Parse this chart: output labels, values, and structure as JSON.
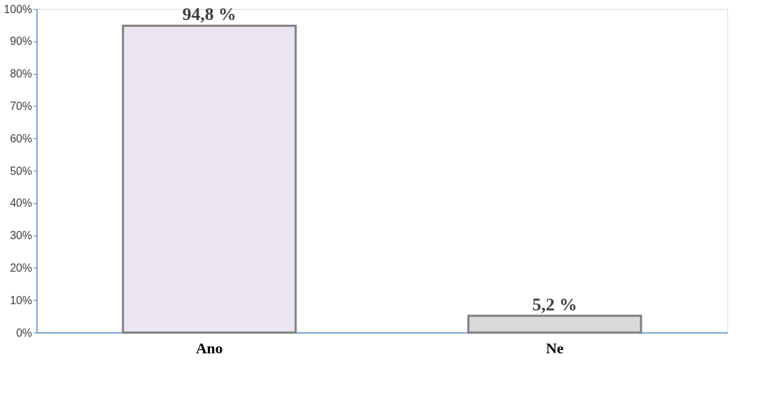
{
  "chart_data": {
    "type": "bar",
    "categories": [
      "Ano",
      "Ne"
    ],
    "values": [
      94.8,
      5.2
    ],
    "colors": [
      "#ece6f3",
      "#d9d9d9"
    ],
    "value_labels": [
      "94,8 %",
      "5,2 %"
    ],
    "ylim": [
      0,
      100
    ],
    "yticks": [
      {
        "value": 0,
        "label": "0%"
      },
      {
        "value": 10,
        "label": "10%"
      },
      {
        "value": 20,
        "label": "20%"
      },
      {
        "value": 30,
        "label": "30%"
      },
      {
        "value": 40,
        "label": "40%"
      },
      {
        "value": 50,
        "label": "50%"
      },
      {
        "value": 60,
        "label": "60%"
      },
      {
        "value": 70,
        "label": "70%"
      },
      {
        "value": 80,
        "label": "80%"
      },
      {
        "value": 90,
        "label": "90%"
      },
      {
        "value": 100,
        "label": "100%"
      }
    ],
    "grid": false
  }
}
